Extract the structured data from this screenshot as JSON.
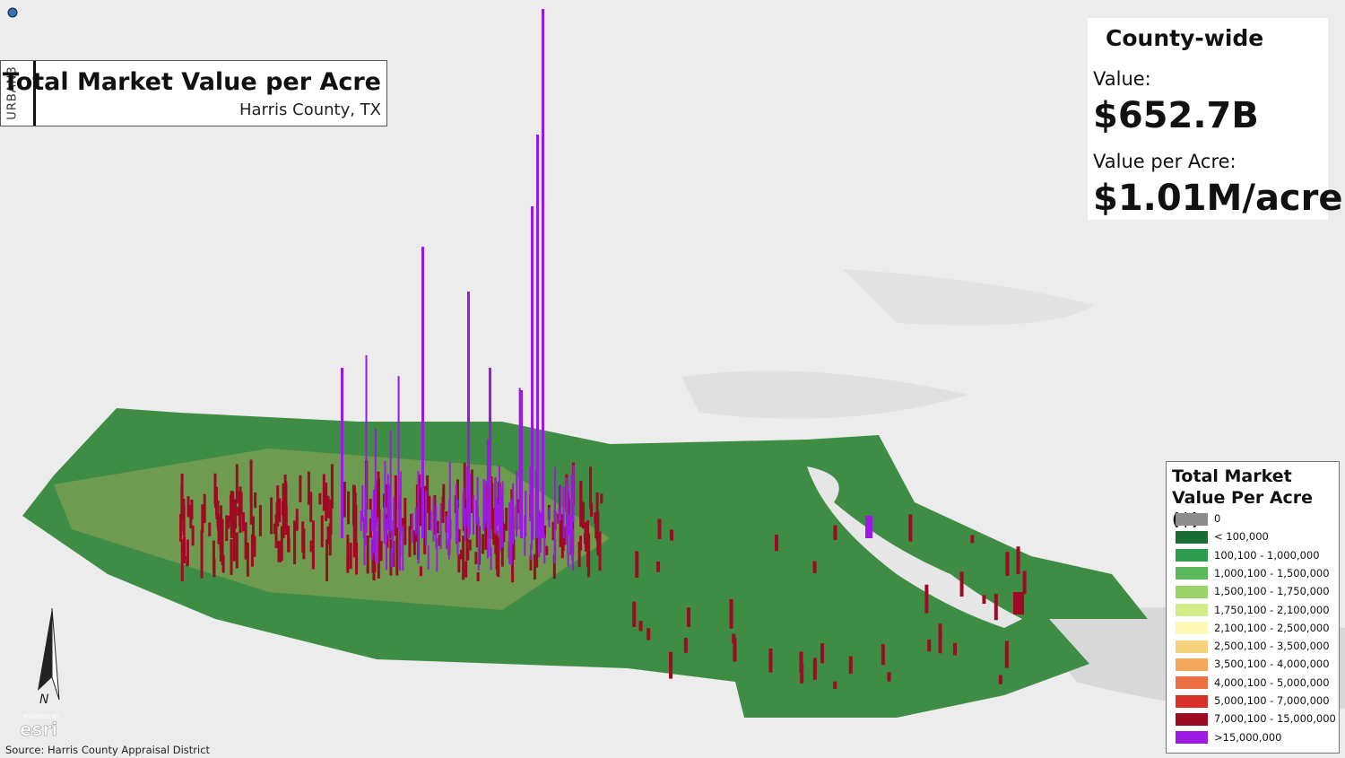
{
  "brand": "URBAN3",
  "header": {
    "title": "Total Market Value per Acre",
    "subtitle": "Harris County, TX"
  },
  "summary": {
    "heading": "County-wide",
    "value_label": "Value:",
    "value": "$652.7B",
    "per_acre_label": "Value per Acre:",
    "per_acre": "$1.01M/acre"
  },
  "legend": {
    "title": "Total Market Value Per Acre ($)",
    "items": [
      {
        "label": "0",
        "color": "#8c8c8c"
      },
      {
        "label": "< 100,000",
        "color": "#1a6e34"
      },
      {
        "label": "100,100 - 1,000,000",
        "color": "#2e9b4e"
      },
      {
        "label": "1,000,100 - 1,500,000",
        "color": "#5cb85c"
      },
      {
        "label": "1,500,100 - 1,750,000",
        "color": "#9ed36a"
      },
      {
        "label": "1,750,100 - 2,100,000",
        "color": "#d4eb8a"
      },
      {
        "label": "2,100,100 - 2,500,000",
        "color": "#fdf7b8"
      },
      {
        "label": "2,500,100 - 3,500,000",
        "color": "#f6d27e"
      },
      {
        "label": "3,500,100 - 4,000,000",
        "color": "#f2a65a"
      },
      {
        "label": "4,000,100 - 5,000,000",
        "color": "#ec7043"
      },
      {
        "label": "5,000,100 - 7,000,000",
        "color": "#d9302a"
      },
      {
        "label": "7,000,100 - 15,000,000",
        "color": "#9e0a22"
      },
      {
        "label": ">15,000,000",
        "color": "#9b19e0"
      }
    ]
  },
  "north": "N",
  "esri": {
    "powered": "POWERED BY",
    "name": "esri"
  },
  "source": "Source: Harris County Appraisal District"
}
